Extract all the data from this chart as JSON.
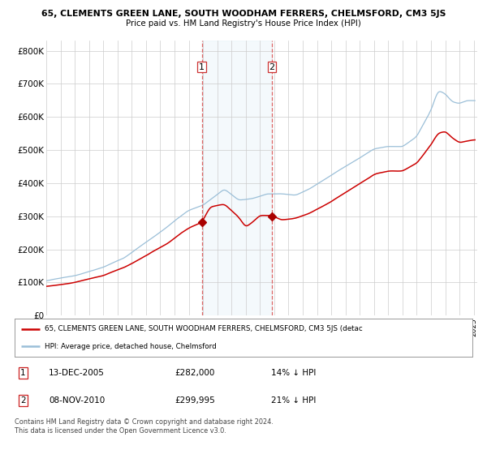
{
  "title1": "65, CLEMENTS GREEN LANE, SOUTH WOODHAM FERRERS, CHELMSFORD, CM3 5JS",
  "title2": "Price paid vs. HM Land Registry's House Price Index (HPI)",
  "ylabel_ticks": [
    "£0",
    "£100K",
    "£200K",
    "£300K",
    "£400K",
    "£500K",
    "£600K",
    "£700K",
    "£800K"
  ],
  "ytick_values": [
    0,
    100000,
    200000,
    300000,
    400000,
    500000,
    600000,
    700000,
    800000
  ],
  "ylim": [
    0,
    830000
  ],
  "hpi_color": "#9bbfd8",
  "price_color": "#cc0000",
  "marker_color": "#aa0000",
  "shade_color": "#ddeef8",
  "dashed_color": "#dd6666",
  "point1_idx_year": 2005,
  "point1_idx_month": 12,
  "point1_value": 282000,
  "point2_idx_year": 2010,
  "point2_idx_month": 11,
  "point2_value": 299995,
  "legend_line1": "65, CLEMENTS GREEN LANE, SOUTH WOODHAM FERRERS, CHELMSFORD, CM3 5JS (detac",
  "legend_line2": "HPI: Average price, detached house, Chelmsford",
  "table_row1_num": "1",
  "table_row1_date": "13-DEC-2005",
  "table_row1_price": "£282,000",
  "table_row1_hpi": "14% ↓ HPI",
  "table_row2_num": "2",
  "table_row2_date": "08-NOV-2010",
  "table_row2_price": "£299,995",
  "table_row2_hpi": "21% ↓ HPI",
  "footer": "Contains HM Land Registry data © Crown copyright and database right 2024.\nThis data is licensed under the Open Government Licence v3.0.",
  "grid_color": "#cccccc",
  "bg_color": "#ffffff",
  "plot_bg_color": "#ffffff",
  "x_start_year": 1995,
  "x_end_year": 2025
}
